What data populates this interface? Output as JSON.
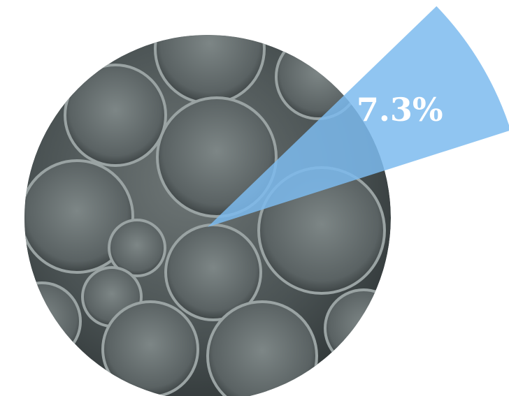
{
  "chart_data": {
    "type": "pie",
    "values": [
      7.3
    ],
    "value_labels": [
      "7.3%"
    ],
    "color": "#7dbbee"
  }
}
